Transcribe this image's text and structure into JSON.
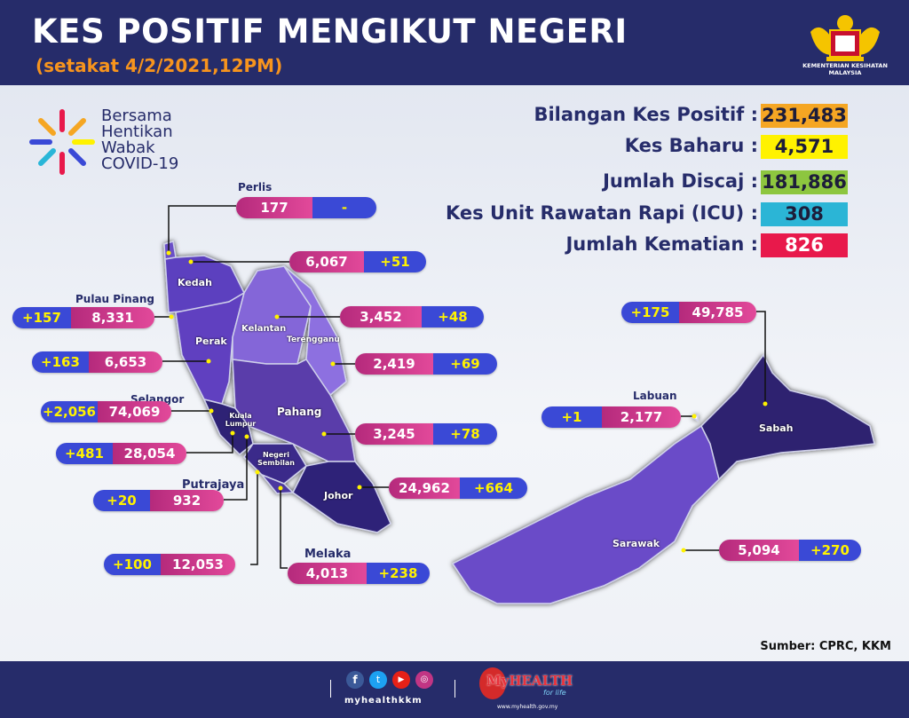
{
  "header": {
    "title": "KES POSITIF MENGIKUT NEGERI",
    "subtitle": "(setakat 4/2/2021,12PM)",
    "ministry": "KEMENTERIAN KESIHATAN MALAYSIA"
  },
  "campaign": {
    "line1": "Bersama",
    "line2": "Hentikan",
    "line3": "Wabak",
    "line4": "COVID-19"
  },
  "stats": [
    {
      "label": "Bilangan Kes Positif :",
      "value": "231,483",
      "color": "#f5a623"
    },
    {
      "label": "Kes Baharu :",
      "value": "4,571",
      "color": "#fff200"
    },
    {
      "label": "Jumlah Discaj :",
      "value": "181,886",
      "color": "#8dc63f"
    },
    {
      "label": "Kes Unit Rawatan Rapi (ICU) :",
      "value": "308",
      "color": "#2bb5d6"
    },
    {
      "label": "Jumlah Kematian :",
      "value": "826",
      "color": "#e8194b"
    }
  ],
  "states": {
    "perlis": {
      "name": "Perlis",
      "total": "177",
      "new": "-"
    },
    "kedah": {
      "name": "Kedah",
      "total": "6,067",
      "new": "+51"
    },
    "pulau_pinang": {
      "name": "Pulau Pinang",
      "total": "8,331",
      "new": "+157"
    },
    "kelantan": {
      "name": "Kelantan",
      "total": "3,452",
      "new": "+48"
    },
    "perak": {
      "name": "Perak",
      "total": "6,653",
      "new": "+163"
    },
    "terengganu": {
      "name": "Terengganu",
      "total": "2,419",
      "new": "+69"
    },
    "selangor": {
      "name": "Selangor",
      "total": "74,069",
      "new": "+2,056"
    },
    "pahang": {
      "name": "Pahang",
      "total": "3,245",
      "new": "+78"
    },
    "kuala_lumpur": {
      "name": "Kuala Lumpur",
      "total": "28,054",
      "new": "+481"
    },
    "johor": {
      "name": "Johor",
      "total": "24,962",
      "new": "+664"
    },
    "putrajaya": {
      "name": "Putrajaya",
      "total": "932",
      "new": "+20"
    },
    "negeri_sembilan": {
      "name": "Negeri Sembilan",
      "total": "12,053",
      "new": "+100"
    },
    "melaka": {
      "name": "Melaka",
      "total": "4,013",
      "new": "+238"
    },
    "sabah": {
      "name": "Sabah",
      "total": "49,785",
      "new": "+175"
    },
    "labuan": {
      "name": "Labuan",
      "total": "2,177",
      "new": "+1"
    },
    "sarawak": {
      "name": "Sarawak",
      "total": "5,094",
      "new": "+270"
    }
  },
  "source": "Sumber: CPRC, KKM",
  "footer": {
    "social_handle": "myhealthkkm",
    "brand": "MyHEALTH",
    "brand_tag": "for life",
    "website": "www.myhealth.gov.my"
  }
}
